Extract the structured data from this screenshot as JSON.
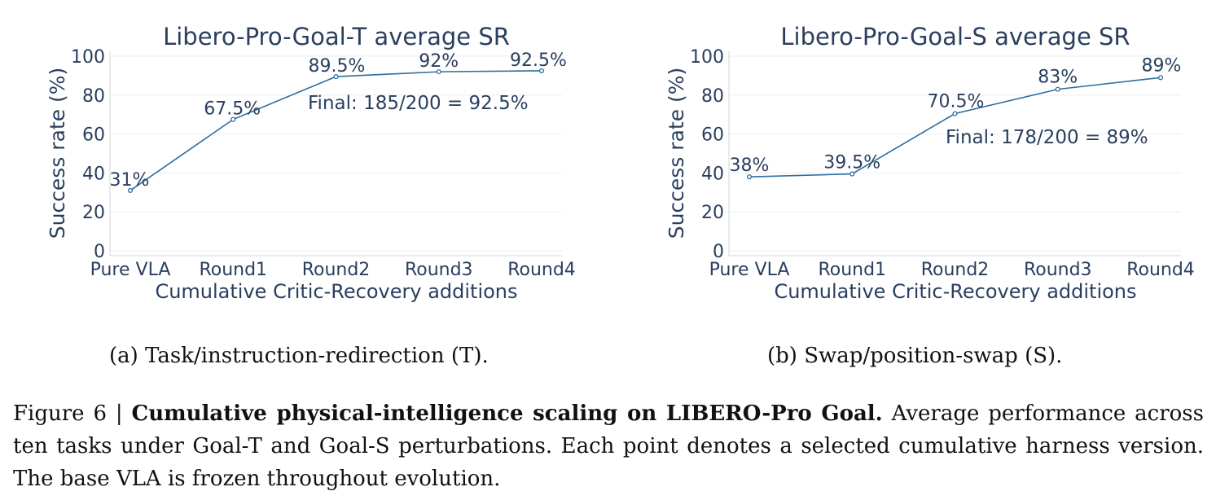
{
  "chart_data": [
    {
      "type": "line",
      "title": "Libero-Pro-Goal-T average SR",
      "xlabel": "Cumulative Critic-Recovery additions",
      "ylabel": "Success rate (%)",
      "categories": [
        "Pure VLA",
        "Round1",
        "Round2",
        "Round3",
        "Round4"
      ],
      "values": [
        31,
        67.5,
        89.5,
        92,
        92.5
      ],
      "data_labels": [
        "31%",
        "67.5%",
        "89.5%",
        "92%",
        "92.5%"
      ],
      "yticks": [
        "0",
        "20",
        "40",
        "60",
        "80",
        "100"
      ],
      "ylim": [
        0,
        100
      ],
      "grid": true,
      "annotation": "Final: 185/200 = 92.5%",
      "line_color": "#2e6fa0"
    },
    {
      "type": "line",
      "title": "Libero-Pro-Goal-S average SR",
      "xlabel": "Cumulative Critic-Recovery additions",
      "ylabel": "Success rate (%)",
      "categories": [
        "Pure VLA",
        "Round1",
        "Round2",
        "Round3",
        "Round4"
      ],
      "values": [
        38,
        39.5,
        70.5,
        83,
        89
      ],
      "data_labels": [
        "38%",
        "39.5%",
        "70.5%",
        "83%",
        "89%"
      ],
      "yticks": [
        "0",
        "20",
        "40",
        "60",
        "80",
        "100"
      ],
      "ylim": [
        0,
        100
      ],
      "grid": true,
      "annotation": "Final: 178/200 = 89%",
      "line_color": "#2e6fa0"
    }
  ],
  "subcaptions": {
    "a": "(a) Task/instruction-redirection (T).",
    "b": "(b) Swap/position-swap (S)."
  },
  "figure_caption": {
    "label": "Figure 6 | ",
    "bold": "Cumulative physical-intelligence scaling on LIBERO-Pro Goal.",
    "rest": " Average performance across ten tasks under Goal-T and Goal-S perturbations. Each point denotes a selected cumulative harness version. The base VLA is frozen throughout evolution."
  }
}
